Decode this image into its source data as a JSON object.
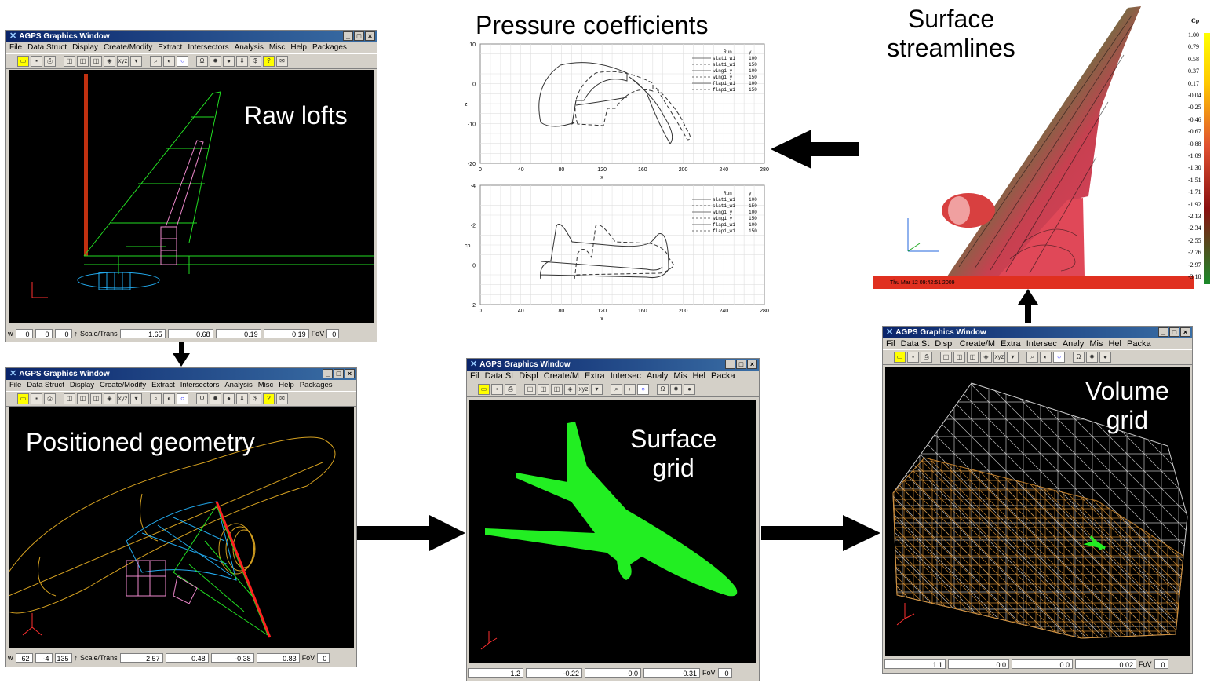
{
  "labels": {
    "raw_lofts": "Raw lofts",
    "positioned_geometry": "Positioned geometry",
    "surface_grid_line1": "Surface",
    "surface_grid_line2": "grid",
    "volume_grid_line1": "Volume",
    "volume_grid_line2": "grid",
    "pressure_coefficients": "Pressure coefficients",
    "surface_streamlines_line1": "Surface",
    "surface_streamlines_line2": "streamlines"
  },
  "window_title": "AGPS Graphics Window",
  "menus_full": [
    "File",
    "Data Struct",
    "Display",
    "Create/Modify",
    "Extract",
    "Intersectors",
    "Analysis",
    "Misc",
    "Help",
    "Packages"
  ],
  "menus_short": [
    "Fil",
    "Data St",
    "Displ",
    "Create/M",
    "Extra",
    "Intersec",
    "Analy",
    "Mis",
    "Hel",
    "Packa"
  ],
  "win1_status": {
    "w": "w",
    "v1": "0",
    "v2": "0",
    "v3": "0",
    "scale_label": "Scale/Trans",
    "s1": "1.65",
    "s2": "0.68",
    "s3": "0.19",
    "s4": "0.19",
    "fov": "FoV",
    "fov_val": "0"
  },
  "win2_status": {
    "w": "w",
    "v1": "62",
    "v2": "-4",
    "v3": "135",
    "scale_label": "Scale/Trans",
    "s1": "2.57",
    "s2": "0.48",
    "s3": "-0.38",
    "s4": "0.83",
    "fov": "FoV",
    "fov_val": "0"
  },
  "win3_status": {
    "s1": "1.2",
    "s2": "-0.22",
    "s3": "0.0",
    "s4": "0.31",
    "fov": "FoV",
    "fov_val": "0"
  },
  "win4_status": {
    "s1": "1.1",
    "s2": "0.0",
    "s3": "0.0",
    "s4": "0.02",
    "fov": "FoV",
    "fov_val": "0"
  },
  "plot1": {
    "yticks": [
      "10",
      "0",
      "-10",
      "-20"
    ],
    "ylabel": "z",
    "xticks": [
      "0",
      "40",
      "80",
      "120",
      "160",
      "200",
      "240",
      "280"
    ],
    "xlabel": "x",
    "legend_header": [
      "Run",
      "y"
    ],
    "legend": [
      [
        "slat1_w1",
        "100"
      ],
      [
        "slat1_w1",
        "150"
      ],
      [
        "wing1 y",
        "100"
      ],
      [
        "wing1 y",
        "150"
      ],
      [
        "flap1_w1",
        "100"
      ],
      [
        "flap1_w1",
        "150"
      ]
    ]
  },
  "plot2": {
    "yticks": [
      "-4",
      "-2",
      "0",
      "2"
    ],
    "ylabel": "cp",
    "xticks": [
      "0",
      "40",
      "80",
      "120",
      "160",
      "200",
      "240",
      "280"
    ],
    "xlabel": "x",
    "legend_header": [
      "Run",
      "y"
    ],
    "legend": [
      [
        "slat1_w1",
        "100"
      ],
      [
        "slat1_w1",
        "150"
      ],
      [
        "wing1 y",
        "100"
      ],
      [
        "wing1 y",
        "150"
      ],
      [
        "flap1_w1",
        "100"
      ],
      [
        "flap1_w1",
        "150"
      ]
    ]
  },
  "colorbar": {
    "title": "Cp",
    "ticks": [
      "1.00",
      "0.79",
      "0.58",
      "0.37",
      "0.17",
      "-0.04",
      "-0.25",
      "-0.46",
      "-0.67",
      "-0.88",
      "-1.09",
      "-1.30",
      "-1.51",
      "-1.71",
      "-1.92",
      "-2.13",
      "-2.34",
      "-2.55",
      "-2.76",
      "-2.97",
      "-3.18"
    ]
  },
  "streamline_timestamp": "Thu Mar 12 09:42:51 2009",
  "colors": {
    "arrow": "#000000",
    "wire_green": "#22dd22",
    "wire_orange": "#e0a020",
    "surface_green": "#22ee22"
  }
}
